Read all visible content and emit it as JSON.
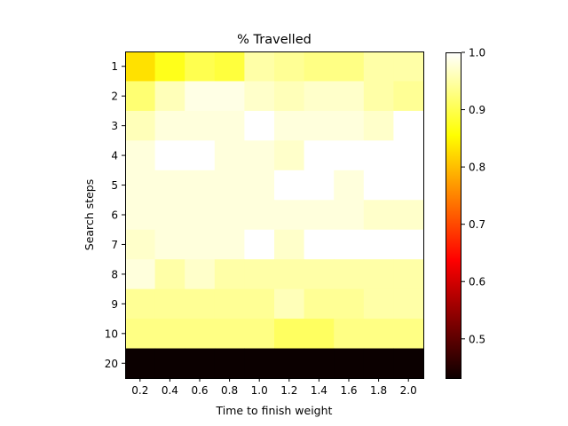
{
  "chart_data": {
    "type": "heatmap",
    "title": "% Travelled",
    "xlabel": "Time to finish weight",
    "ylabel": "Search steps",
    "x": [
      "0.2",
      "0.4",
      "0.6",
      "0.8",
      "1.0",
      "1.2",
      "1.4",
      "1.6",
      "1.8",
      "2.0"
    ],
    "y": [
      "1",
      "2",
      "3",
      "4",
      "5",
      "6",
      "7",
      "8",
      "9",
      "10",
      "20"
    ],
    "values": [
      [
        0.83,
        0.87,
        0.9,
        0.89,
        0.95,
        0.94,
        0.93,
        0.93,
        0.95,
        0.95
      ],
      [
        0.92,
        0.96,
        0.985,
        0.985,
        0.97,
        0.96,
        0.97,
        0.97,
        0.95,
        0.94
      ],
      [
        0.96,
        0.98,
        0.98,
        0.98,
        1.0,
        0.98,
        0.98,
        0.98,
        0.97,
        1.0
      ],
      [
        0.98,
        1.0,
        1.0,
        0.98,
        0.98,
        0.97,
        1.0,
        1.0,
        1.0,
        1.0
      ],
      [
        0.98,
        0.98,
        0.98,
        0.98,
        0.98,
        1.0,
        1.0,
        0.98,
        1.0,
        1.0
      ],
      [
        0.98,
        0.98,
        0.98,
        0.98,
        0.98,
        0.98,
        0.98,
        0.98,
        0.97,
        0.97
      ],
      [
        0.97,
        0.98,
        0.98,
        0.98,
        1.0,
        0.97,
        1.0,
        1.0,
        1.0,
        1.0
      ],
      [
        0.98,
        0.95,
        0.97,
        0.95,
        0.95,
        0.95,
        0.95,
        0.95,
        0.95,
        0.95
      ],
      [
        0.94,
        0.94,
        0.94,
        0.94,
        0.94,
        0.96,
        0.94,
        0.94,
        0.95,
        0.95
      ],
      [
        0.93,
        0.93,
        0.93,
        0.93,
        0.93,
        0.91,
        0.91,
        0.93,
        0.93,
        0.93
      ],
      [
        0.43,
        0.43,
        0.43,
        0.43,
        0.43,
        0.43,
        0.43,
        0.43,
        0.43,
        0.43
      ]
    ],
    "colormap": "hot",
    "vmin": 0.43,
    "vmax": 1.0,
    "colorbar_ticks": [
      "0.5",
      "0.6",
      "0.7",
      "0.8",
      "0.9",
      "1.0"
    ],
    "colorbar_tick_values": [
      0.5,
      0.6,
      0.7,
      0.8,
      0.9,
      1.0
    ],
    "grid": false
  }
}
